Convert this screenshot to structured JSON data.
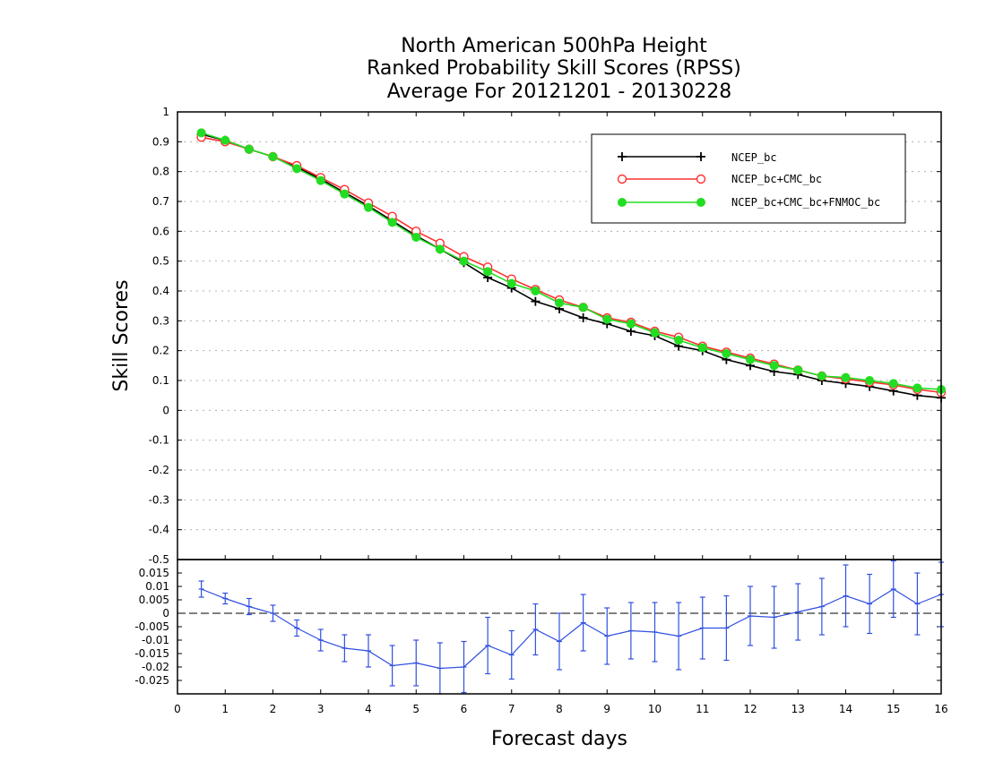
{
  "colors": {
    "ncep_bc": "#000000",
    "ncep_cmc": "#ff3030",
    "ncep_cmc_fnmoc": "#22dd22",
    "difference": "#3050e0",
    "grid": "#b0b0b0"
  },
  "chart_data": [
    {
      "type": "line",
      "title": "North American 500hPa Height",
      "subtitle": "Ranked Probability Skill Scores (RPSS)",
      "subtitle2": "Average For 20121201 - 20130228",
      "xlabel": "Forecast days",
      "ylabel": "Skill Scores",
      "xlim": [
        0,
        16
      ],
      "ylim": [
        -0.5,
        1
      ],
      "grid": true,
      "legend_position": "top-right",
      "xtick_labels": [
        "0",
        "1",
        "2",
        "3",
        "4",
        "5",
        "6",
        "7",
        "8",
        "9",
        "10",
        "11",
        "12",
        "13",
        "14",
        "15",
        "16"
      ],
      "ytick_labels": [
        "-0.5",
        "-0.4",
        "-0.3",
        "-0.2",
        "-0.1",
        "0",
        "0.1",
        "0.2",
        "0.3",
        "0.4",
        "0.5",
        "0.6",
        "0.7",
        "0.8",
        "0.9",
        "1"
      ],
      "x": [
        0.5,
        1,
        1.5,
        2,
        2.5,
        3,
        3.5,
        4,
        4.5,
        5,
        5.5,
        6,
        6.5,
        7,
        7.5,
        8,
        8.5,
        9,
        9.5,
        10,
        10.5,
        11,
        11.5,
        12,
        12.5,
        13,
        13.5,
        14,
        14.5,
        15,
        15.5,
        16
      ],
      "series": [
        {
          "name": "NCEP_bc",
          "marker": "plus",
          "values": [
            0.925,
            0.905,
            0.875,
            0.85,
            0.815,
            0.775,
            0.73,
            0.685,
            0.635,
            0.585,
            0.54,
            0.495,
            0.445,
            0.41,
            0.365,
            0.34,
            0.31,
            0.29,
            0.265,
            0.25,
            0.215,
            0.2,
            0.17,
            0.15,
            0.13,
            0.12,
            0.1,
            0.09,
            0.08,
            0.065,
            0.05,
            0.042
          ]
        },
        {
          "name": "NCEP_bc+CMC_bc",
          "marker": "open-circle",
          "values": [
            0.915,
            0.9,
            0.875,
            0.85,
            0.82,
            0.78,
            0.74,
            0.695,
            0.65,
            0.6,
            0.56,
            0.515,
            0.48,
            0.44,
            0.405,
            0.37,
            0.345,
            0.31,
            0.295,
            0.265,
            0.245,
            0.215,
            0.195,
            0.175,
            0.155,
            0.135,
            0.115,
            0.105,
            0.095,
            0.085,
            0.07,
            0.06
          ]
        },
        {
          "name": "NCEP_bc+CMC_bc+FNMOC_bc",
          "marker": "filled-circle",
          "values": [
            0.93,
            0.905,
            0.875,
            0.85,
            0.81,
            0.77,
            0.725,
            0.68,
            0.63,
            0.58,
            0.54,
            0.5,
            0.465,
            0.425,
            0.4,
            0.36,
            0.345,
            0.305,
            0.29,
            0.26,
            0.235,
            0.21,
            0.19,
            0.17,
            0.15,
            0.135,
            0.115,
            0.11,
            0.1,
            0.09,
            0.075,
            0.07
          ]
        }
      ]
    },
    {
      "type": "line",
      "ylim": [
        -0.03,
        0.02
      ],
      "xlim": [
        0,
        16
      ],
      "ytick_labels": [
        "-0.025",
        "-0.02",
        "-0.015",
        "-0.01",
        "-0.005",
        "0",
        "0.005",
        "0.01",
        "0.015"
      ],
      "series": [
        {
          "values": [
            0.009,
            0.0055,
            0.0025,
            0.0,
            -0.0055,
            -0.01,
            -0.013,
            -0.014,
            -0.0195,
            -0.0185,
            -0.0205,
            -0.02,
            -0.012,
            -0.0155,
            -0.006,
            -0.0105,
            -0.0035,
            -0.0085,
            -0.0065,
            -0.007,
            -0.0085,
            -0.0055,
            -0.0055,
            -0.001,
            -0.0015,
            0.0005,
            0.0025,
            0.0065,
            0.0035,
            0.009,
            0.0035,
            0.007
          ],
          "error": [
            0.003,
            0.002,
            0.003,
            0.003,
            0.003,
            0.004,
            0.005,
            0.006,
            0.0075,
            0.0085,
            0.0095,
            0.0095,
            0.0105,
            0.009,
            0.0095,
            0.0105,
            0.0105,
            0.0105,
            0.0105,
            0.011,
            0.0125,
            0.0115,
            0.012,
            0.011,
            0.0115,
            0.0105,
            0.0105,
            0.0115,
            0.011,
            0.0105,
            0.0115,
            0.012
          ]
        }
      ]
    }
  ]
}
